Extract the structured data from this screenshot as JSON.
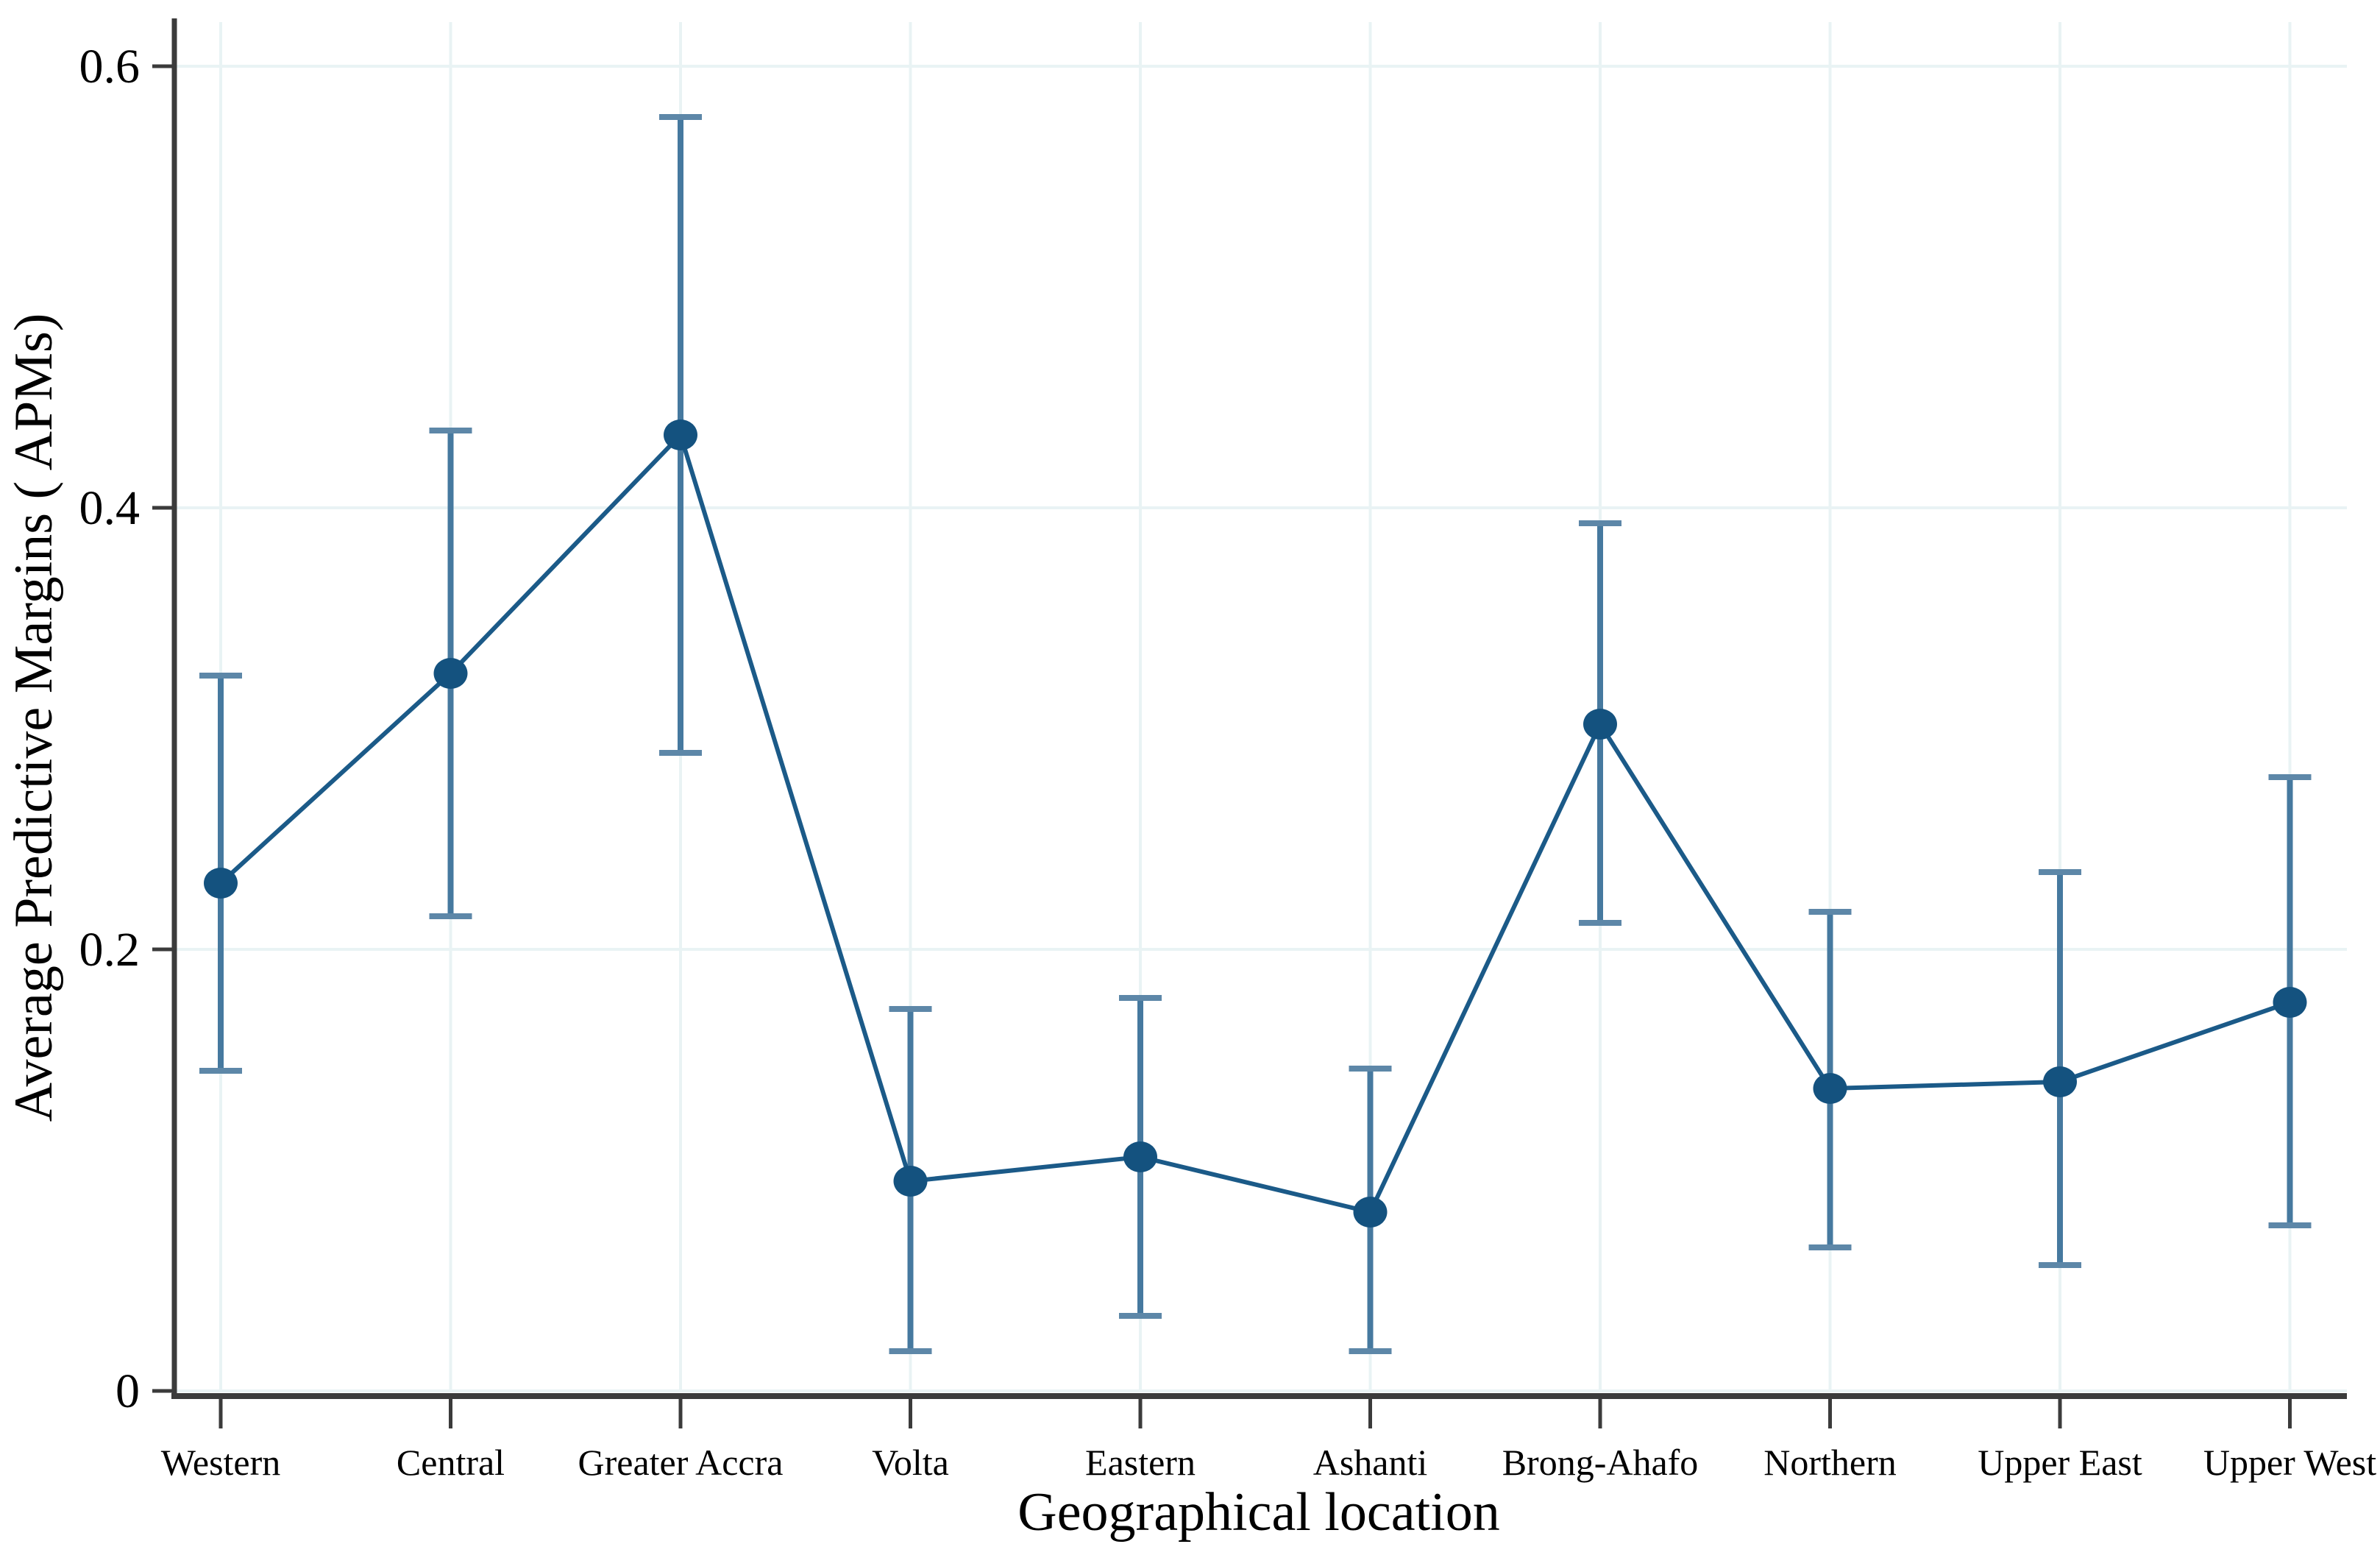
{
  "chart_data": {
    "type": "line",
    "title": "",
    "xlabel": "Geographical location",
    "ylabel": "Average Predictive Margins ( APMs)",
    "categories": [
      "Western",
      "Central",
      "Greater Accra",
      "Volta",
      "Eastern",
      "Ashanti",
      "Brong-Ahafo",
      "Northern",
      "Upper East",
      "Upper West"
    ],
    "series": [
      {
        "name": "Average Predictive Margins",
        "values": [
          0.23,
          0.325,
          0.433,
          0.095,
          0.106,
          0.081,
          0.302,
          0.137,
          0.14,
          0.176
        ],
        "ci_low": [
          0.145,
          0.215,
          0.289,
          0.018,
          0.034,
          0.018,
          0.212,
          0.065,
          0.057,
          0.075
        ],
        "ci_high": [
          0.324,
          0.435,
          0.577,
          0.173,
          0.178,
          0.146,
          0.393,
          0.217,
          0.235,
          0.278
        ]
      }
    ],
    "error_bars": true,
    "y_ticks": [
      0,
      0.2,
      0.4,
      0.6
    ],
    "y_tick_labels": [
      "0",
      "0.2",
      "0.4",
      "0.6"
    ],
    "ylim": [
      0,
      0.62
    ],
    "grid": true,
    "legend_position": "none"
  },
  "style": {
    "marker_color": "#14527f",
    "line_color": "#1b5a88",
    "ci_stem_color": "#46799f",
    "ci_cap_color": "#5d87a8",
    "grid_color": "#e9f3f4",
    "axis_color": "#3b3b3b",
    "text_color": "#000000",
    "background": "#ffffff"
  }
}
